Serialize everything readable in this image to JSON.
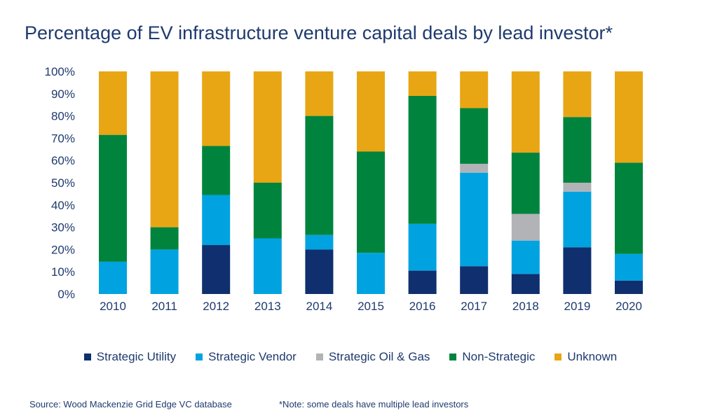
{
  "chart_data": {
    "type": "bar",
    "stacked": true,
    "title": "Percentage of EV infrastructure venture capital deals by lead investor*",
    "categories": [
      "2010",
      "2011",
      "2012",
      "2013",
      "2014",
      "2015",
      "2016",
      "2017",
      "2018",
      "2019",
      "2020"
    ],
    "series": [
      {
        "name": "Strategic Utility",
        "color": "#0f2f6e",
        "values": [
          0,
          0,
          22,
          0,
          20,
          0,
          10.5,
          12.5,
          9,
          21,
          6
        ]
      },
      {
        "name": "Strategic Vendor",
        "color": "#00a3e0",
        "values": [
          14.5,
          20,
          22.5,
          25,
          6.5,
          18.5,
          21,
          42,
          15,
          25,
          12
        ]
      },
      {
        "name": "Strategic Oil & Gas",
        "color": "#b1b3b6",
        "values": [
          0,
          0,
          0,
          0,
          0,
          0,
          0,
          4,
          12,
          4,
          0
        ]
      },
      {
        "name": "Non-Strategic",
        "color": "#00843d",
        "values": [
          57,
          10,
          22,
          25,
          53.5,
          45.5,
          57.5,
          25,
          27.5,
          29.5,
          41
        ]
      },
      {
        "name": "Unknown",
        "color": "#e8a614",
        "values": [
          28.5,
          70,
          33.5,
          50,
          20,
          36,
          11,
          16.5,
          36.5,
          20.5,
          41
        ]
      }
    ],
    "ylim": [
      0,
      100
    ],
    "yticks": [
      "0%",
      "10%",
      "20%",
      "30%",
      "40%",
      "50%",
      "60%",
      "70%",
      "80%",
      "90%",
      "100%"
    ],
    "grid": false,
    "legend_position": "bottom"
  },
  "footer": {
    "source": "Source: Wood Mackenzie Grid Edge VC database",
    "note": "*Note: some deals have multiple lead investors"
  }
}
